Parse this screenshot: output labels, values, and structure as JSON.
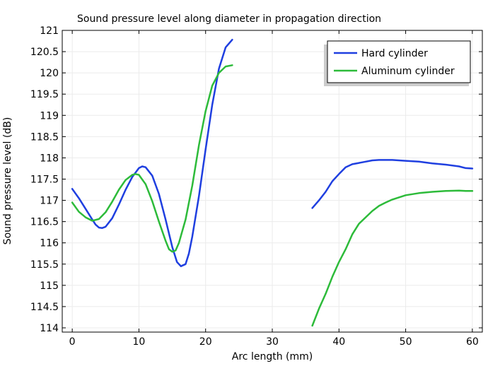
{
  "chart_data": {
    "type": "line",
    "title": "Sound pressure level along diameter in propagation direction",
    "xlabel": "Arc length (mm)",
    "ylabel": "Sound pressure level (dB)",
    "xlim": [
      -1.5,
      61.5
    ],
    "ylim": [
      113.9,
      121
    ],
    "xticks": [
      0,
      10,
      20,
      30,
      40,
      50,
      60
    ],
    "yticks": [
      114,
      114.5,
      115,
      115.5,
      116,
      116.5,
      117,
      117.5,
      118,
      118.5,
      119,
      119.5,
      120,
      120.5,
      121
    ],
    "ytick_labels": [
      "114",
      "114.5",
      "115",
      "115.5",
      "116",
      "116.5",
      "117",
      "117.5",
      "118",
      "118.5",
      "119",
      "119.5",
      "120",
      "120.5",
      "121"
    ],
    "grid": true,
    "legend_position": "top-right",
    "series": [
      {
        "name": "Hard cylinder",
        "color": "#1f3fe0",
        "segments": [
          [
            [
              0,
              117.27
            ],
            [
              1,
              117.05
            ],
            [
              2,
              116.8
            ],
            [
              3,
              116.55
            ],
            [
              3.5,
              116.43
            ],
            [
              4,
              116.36
            ],
            [
              4.5,
              116.35
            ],
            [
              5,
              116.38
            ],
            [
              6,
              116.58
            ],
            [
              7,
              116.9
            ],
            [
              8,
              117.25
            ],
            [
              9,
              117.55
            ],
            [
              10,
              117.76
            ],
            [
              10.5,
              117.8
            ],
            [
              11,
              117.78
            ],
            [
              12,
              117.58
            ],
            [
              13,
              117.15
            ],
            [
              14,
              116.55
            ],
            [
              15,
              115.9
            ],
            [
              15.7,
              115.55
            ],
            [
              16.3,
              115.45
            ],
            [
              17,
              115.5
            ],
            [
              17.5,
              115.75
            ],
            [
              18,
              116.15
            ],
            [
              19,
              117.1
            ],
            [
              20,
              118.2
            ],
            [
              21,
              119.25
            ],
            [
              22,
              120.1
            ],
            [
              23,
              120.6
            ],
            [
              24,
              120.78
            ]
          ],
          [
            [
              36,
              116.82
            ],
            [
              37,
              117.0
            ],
            [
              38,
              117.2
            ],
            [
              39,
              117.45
            ],
            [
              40,
              117.62
            ],
            [
              41,
              117.78
            ],
            [
              42,
              117.85
            ],
            [
              43,
              117.88
            ],
            [
              44,
              117.91
            ],
            [
              45,
              117.94
            ],
            [
              46,
              117.95
            ],
            [
              47,
              117.95
            ],
            [
              48,
              117.95
            ],
            [
              50,
              117.93
            ],
            [
              52,
              117.91
            ],
            [
              54,
              117.87
            ],
            [
              56,
              117.84
            ],
            [
              58,
              117.8
            ],
            [
              59,
              117.76
            ],
            [
              60,
              117.75
            ]
          ]
        ]
      },
      {
        "name": "Aluminum cylinder",
        "color": "#2dbb3a",
        "segments": [
          [
            [
              0,
              116.95
            ],
            [
              1,
              116.73
            ],
            [
              2,
              116.6
            ],
            [
              3,
              116.52
            ],
            [
              4,
              116.56
            ],
            [
              5,
              116.72
            ],
            [
              6,
              116.97
            ],
            [
              7,
              117.25
            ],
            [
              8,
              117.48
            ],
            [
              9,
              117.6
            ],
            [
              9.5,
              117.62
            ],
            [
              10,
              117.6
            ],
            [
              11,
              117.38
            ],
            [
              12,
              116.98
            ],
            [
              13,
              116.5
            ],
            [
              14,
              116.05
            ],
            [
              14.5,
              115.85
            ],
            [
              15,
              115.79
            ],
            [
              15.5,
              115.82
            ],
            [
              16,
              116.0
            ],
            [
              17,
              116.55
            ],
            [
              18,
              117.35
            ],
            [
              19,
              118.3
            ],
            [
              20,
              119.1
            ],
            [
              21,
              119.7
            ],
            [
              22,
              120.0
            ],
            [
              23,
              120.15
            ],
            [
              24,
              120.18
            ]
          ],
          [
            [
              36,
              114.05
            ],
            [
              37,
              114.45
            ],
            [
              38,
              114.8
            ],
            [
              39,
              115.2
            ],
            [
              40,
              115.55
            ],
            [
              41,
              115.85
            ],
            [
              42,
              116.2
            ],
            [
              43,
              116.45
            ],
            [
              44,
              116.6
            ],
            [
              45,
              116.75
            ],
            [
              46,
              116.87
            ],
            [
              47,
              116.95
            ],
            [
              48,
              117.02
            ],
            [
              50,
              117.12
            ],
            [
              52,
              117.17
            ],
            [
              54,
              117.2
            ],
            [
              56,
              117.22
            ],
            [
              58,
              117.23
            ],
            [
              59,
              117.22
            ],
            [
              60,
              117.22
            ]
          ]
        ]
      }
    ]
  }
}
